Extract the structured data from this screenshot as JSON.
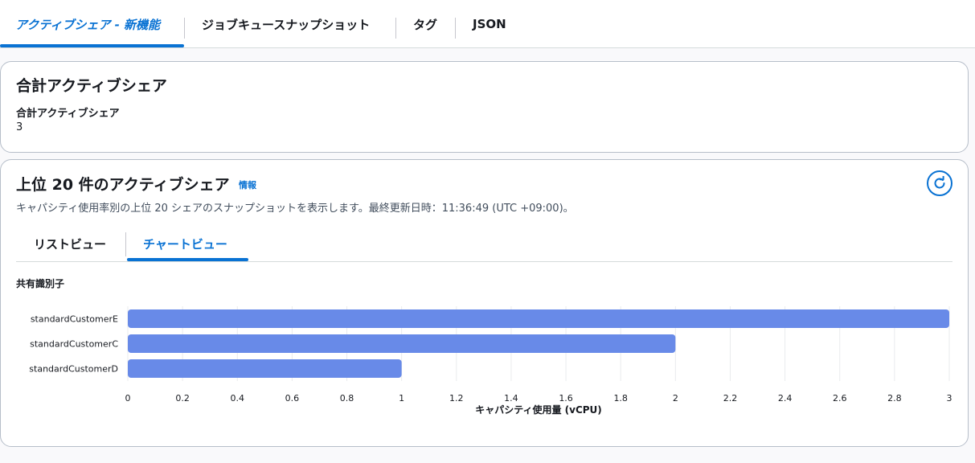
{
  "tabs": [
    {
      "label": "アクティブシェア - 新機能",
      "active": true
    },
    {
      "label": "ジョブキュースナップショット",
      "active": false
    },
    {
      "label": "タグ",
      "active": false
    },
    {
      "label": "JSON",
      "active": false
    }
  ],
  "total_card": {
    "title": "合計アクティブシェア",
    "label": "合計アクティブシェア",
    "value": "3"
  },
  "top_card": {
    "title": "上位 20 件のアクティブシェア",
    "info_link": "情報",
    "refresh_icon": "refresh-icon",
    "subtitle": "キャパシティ使用率別の上位 20 シェアのスナップショットを表示します。最終更新日時：11:36:49 (UTC +09:00)。",
    "inner_tabs": [
      {
        "label": "リストビュー",
        "active": false
      },
      {
        "label": "チャートビュー",
        "active": true
      }
    ]
  },
  "colors": {
    "accent": "#0972d3",
    "bar": "#688ae8"
  },
  "chart_data": {
    "type": "bar",
    "orientation": "horizontal",
    "categories": [
      "standardCustomerE",
      "standardCustomerC",
      "standardCustomerD"
    ],
    "values": [
      3,
      2,
      1
    ],
    "title": "",
    "ylabel": "共有識別子",
    "xlabel": "キャパシティ使用量 (vCPU)",
    "xlim": [
      0,
      3
    ],
    "xticks": [
      "0",
      "0.2",
      "0.4",
      "0.6",
      "0.8",
      "1",
      "1.2",
      "1.4",
      "1.6",
      "1.8",
      "2",
      "2.2",
      "2.4",
      "2.6",
      "2.8",
      "3"
    ],
    "grid": true,
    "legend": "none"
  }
}
